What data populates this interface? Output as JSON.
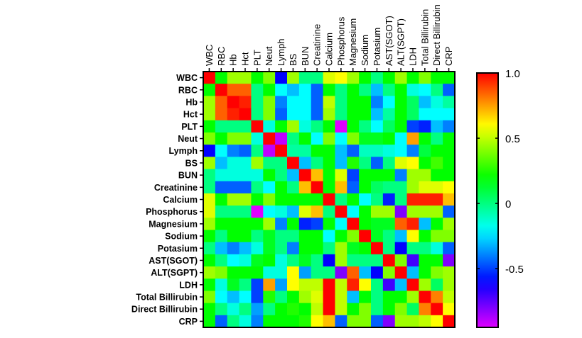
{
  "chart_data": {
    "type": "heatmap",
    "title": "",
    "labels": [
      "WBC",
      "RBC",
      "Hb",
      "Hct",
      "PLT",
      "Neut",
      "Lymph",
      "BS",
      "BUN",
      "Creatinine",
      "Calcium",
      "Phosphorus",
      "Magnesium",
      "Sodium",
      "Potasium",
      "AST(SGOT)",
      "ALT(SGPT)",
      "LDH",
      "Total Billirubin",
      "Direct Billirubin",
      "CRP"
    ],
    "colorbar": {
      "range": [
        -0.95,
        1.0
      ],
      "ticks": [
        1.0,
        0.5,
        0,
        -0.5
      ],
      "tick_labels": [
        "1.0",
        "0.5",
        "0",
        "-0.5"
      ],
      "colormap": "rainbow (magenta-blue-cyan-green-yellow-red)"
    },
    "values": [
      [
        1,
        0.2,
        0.45,
        0.45,
        0.2,
        0.4,
        -0.6,
        0.45,
        0,
        0,
        0.55,
        0.6,
        0.45,
        0.2,
        0,
        0.2,
        0.45,
        0.2,
        0.4,
        0.2,
        0.2
      ],
      [
        0.2,
        1,
        0.85,
        0.85,
        0,
        0.2,
        -0.2,
        -0.3,
        -0.2,
        -0.45,
        0.2,
        0,
        0.2,
        0,
        -0.3,
        0,
        0.2,
        -0.15,
        -0.2,
        0,
        -0.45
      ],
      [
        0.45,
        0.85,
        1,
        0.95,
        0,
        0.4,
        -0.4,
        -0.2,
        -0.2,
        -0.45,
        0.5,
        0,
        0.2,
        0.2,
        -0.4,
        -0.2,
        0.2,
        0.05,
        -0.3,
        -0.15,
        -0.05
      ],
      [
        0.45,
        0.85,
        0.95,
        1,
        0,
        0.4,
        -0.45,
        -0.2,
        -0.2,
        -0.45,
        0.45,
        0,
        0.2,
        0.2,
        -0.3,
        -0.05,
        0.2,
        0.05,
        -0.2,
        -0.2,
        -0.2
      ],
      [
        0.2,
        0,
        0,
        0,
        1,
        -0.15,
        0.2,
        0.45,
        -0.15,
        0,
        0.2,
        -0.95,
        0.2,
        0,
        -0.2,
        0.05,
        0.2,
        -0.5,
        -0.55,
        -0.3,
        -0.4
      ],
      [
        0.4,
        0.2,
        0.4,
        0.4,
        -0.15,
        1,
        -0.9,
        0,
        0.2,
        -0.2,
        0.4,
        -0.2,
        0.4,
        0.15,
        0.15,
        0.2,
        -0.2,
        0.75,
        0.2,
        0,
        0.2
      ],
      [
        -0.6,
        -0.2,
        -0.4,
        -0.45,
        0,
        -0.9,
        1,
        -0.05,
        -0.05,
        0.2,
        0.2,
        -0.3,
        -0.45,
        -0.1,
        -0.1,
        -0.15,
        -0.2,
        -0.4,
        0.1,
        0.2,
        0.2
      ],
      [
        0.45,
        -0.3,
        -0.15,
        -0.15,
        0.45,
        0,
        0,
        1,
        -0.3,
        0,
        0.2,
        -0.3,
        0.25,
        0,
        -0.45,
        0,
        0.55,
        0.6,
        0.2,
        0.3,
        0.2
      ],
      [
        0,
        -0.15,
        -0.15,
        -0.15,
        -0.15,
        0.2,
        0,
        -0.3,
        1,
        0.7,
        0.2,
        0.55,
        -0.5,
        0.2,
        0.2,
        0.2,
        -0.4,
        0.45,
        0.45,
        0.2,
        0.2
      ],
      [
        0,
        -0.45,
        -0.45,
        -0.45,
        0,
        -0.2,
        0.2,
        0,
        0.7,
        1,
        0.2,
        0.7,
        -0.45,
        0.2,
        0.05,
        0,
        0,
        0.45,
        0.55,
        0.55,
        0.6
      ],
      [
        0.55,
        0.2,
        0.45,
        0.45,
        0.2,
        0.4,
        0.2,
        0.2,
        0.2,
        0.2,
        1,
        0,
        0.2,
        -0.2,
        0,
        -0.55,
        0,
        0.95,
        0.95,
        0.95,
        0.7
      ],
      [
        0.55,
        0,
        0,
        0,
        -0.95,
        -0.2,
        -0.15,
        -0.3,
        0.55,
        0.7,
        0,
        1,
        -0.2,
        0.2,
        0.45,
        0.45,
        -0.8,
        0.45,
        0.45,
        0.45,
        -0.45
      ],
      [
        0.45,
        0.2,
        0.2,
        0.2,
        0.2,
        0.45,
        -0.4,
        0.2,
        -0.55,
        -0.5,
        0.2,
        -0.2,
        1,
        0.2,
        0.15,
        0.15,
        0.85,
        0.95,
        -0.3,
        0.2,
        0.45
      ],
      [
        0.2,
        0,
        0.2,
        0.2,
        0,
        0.15,
        0,
        0,
        0.2,
        0.2,
        -0.2,
        0.2,
        0.4,
        1,
        0.15,
        0,
        -0.3,
        0.6,
        0.2,
        0.4,
        0.4
      ],
      [
        0,
        -0.3,
        -0.4,
        -0.3,
        -0.15,
        0.15,
        0,
        -0.4,
        0.2,
        0.2,
        0,
        0.45,
        0.15,
        0.2,
        1,
        0,
        -0.6,
        0,
        0,
        -0.15,
        -0.45
      ],
      [
        0.2,
        0,
        -0.2,
        -0.15,
        0.15,
        0.2,
        -0.15,
        0,
        0.15,
        0,
        -0.6,
        0.45,
        0,
        0,
        0,
        1,
        0.4,
        -0.7,
        0.2,
        0.2,
        -0.8
      ],
      [
        0.45,
        0.4,
        0.2,
        0.2,
        0.2,
        -0.15,
        -0.15,
        0.6,
        -0.35,
        0,
        0,
        -0.8,
        0.85,
        -0.3,
        -0.6,
        0.4,
        1,
        -0.3,
        0.2,
        0.4,
        0.45
      ],
      [
        0.2,
        -0.15,
        0.15,
        0,
        -0.5,
        0.75,
        -0.35,
        0.6,
        0.5,
        0.5,
        1,
        0.5,
        0.95,
        0.6,
        0,
        -0.7,
        -0.3,
        1,
        0.45,
        0.05,
        0.45
      ],
      [
        0.4,
        -0.2,
        -0.3,
        -0.2,
        -0.5,
        0.25,
        0,
        0.2,
        0.45,
        0.55,
        1,
        0.5,
        -0.3,
        0.2,
        0,
        0.2,
        0.2,
        0.45,
        1,
        0.8,
        0.5
      ],
      [
        0.2,
        0,
        -0.15,
        0,
        -0.35,
        0,
        0.2,
        0.25,
        0.2,
        0.5,
        1,
        0.5,
        0.2,
        0.4,
        0,
        0.2,
        0.4,
        0.05,
        0.8,
        1,
        0.6
      ],
      [
        0.2,
        -0.45,
        0,
        -0.15,
        -0.4,
        0.2,
        0.2,
        0.2,
        0.25,
        0.6,
        0.7,
        -0.45,
        0.4,
        0.4,
        -0.45,
        -0.8,
        0.45,
        0.45,
        0.5,
        0.6,
        1
      ]
    ]
  }
}
